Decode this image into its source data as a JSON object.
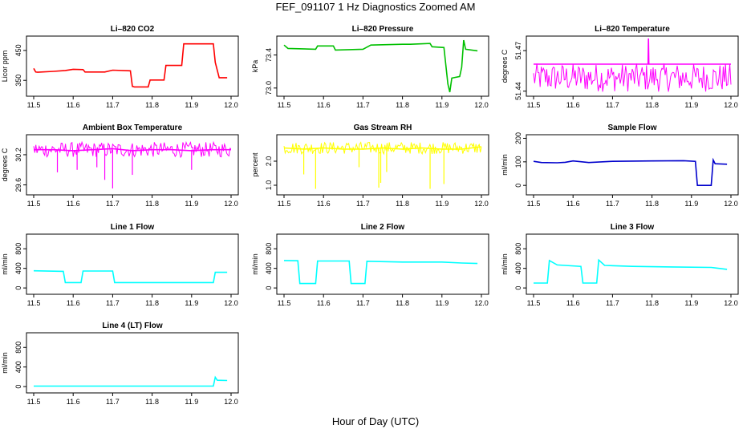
{
  "figure": {
    "title": "FEF_091107  1 Hz Diagnostics Zoomed AM",
    "xlabel": "Hour of Day (UTC)"
  },
  "chart_data": [
    {
      "type": "line",
      "title": "Li–820 CO2",
      "ylabel": "Licor ppm",
      "color": "#ff0000",
      "xlim": [
        11.5,
        12.0
      ],
      "ylim": [
        305,
        490
      ],
      "xticks": [
        "11.5",
        "11.6",
        "11.7",
        "11.8",
        "11.9",
        "12.0"
      ],
      "yticks": [
        "350",
        "450"
      ],
      "x": [
        11.5,
        11.505,
        11.51,
        11.55,
        11.58,
        11.6,
        11.625,
        11.63,
        11.68,
        11.7,
        11.745,
        11.75,
        11.755,
        11.79,
        11.795,
        11.83,
        11.835,
        11.875,
        11.88,
        11.955,
        11.96,
        11.97,
        11.99
      ],
      "y": [
        390,
        378,
        377,
        380,
        383,
        387,
        386,
        378,
        378,
        384,
        382,
        330,
        328,
        328,
        351,
        351,
        400,
        400,
        472,
        472,
        410,
        359,
        359
      ]
    },
    {
      "type": "line",
      "title": "Li–820 Pressure",
      "ylabel": "kPa",
      "color": "#00c000",
      "xlim": [
        11.5,
        12.0
      ],
      "ylim": [
        72.93,
        73.6
      ],
      "xticks": [
        "11.5",
        "11.6",
        "11.7",
        "11.8",
        "11.9",
        "12.0"
      ],
      "yticks": [
        "73.0",
        "73.4"
      ],
      "x": [
        11.5,
        11.51,
        11.58,
        11.585,
        11.625,
        11.63,
        11.7,
        11.72,
        11.8,
        11.82,
        11.87,
        11.875,
        11.905,
        11.915,
        11.92,
        11.925,
        11.945,
        11.95,
        11.955,
        11.96,
        11.99
      ],
      "y": [
        73.52,
        73.48,
        73.47,
        73.51,
        73.51,
        73.46,
        73.47,
        73.52,
        73.53,
        73.53,
        73.54,
        73.5,
        73.49,
        73.05,
        72.95,
        73.12,
        73.14,
        73.25,
        73.58,
        73.47,
        73.45
      ]
    },
    {
      "type": "line",
      "title": "Li–820 Temperature",
      "ylabel": "degrees C",
      "color": "#ff00ff",
      "xlim": [
        11.5,
        12.0
      ],
      "ylim": [
        51.438,
        51.479
      ],
      "xticks": [
        "11.5",
        "11.6",
        "11.7",
        "11.8",
        "11.9",
        "12.0"
      ],
      "yticks": [
        "51.44",
        "51.47"
      ],
      "x": [
        11.5,
        11.79,
        11.791,
        11.792,
        12.0
      ],
      "y": [
        51.46,
        51.46,
        51.479,
        51.46,
        51.46
      ],
      "band": [
        51.4395,
        51.4605
      ]
    },
    {
      "type": "line",
      "title": "Ambient Box Temperature",
      "ylabel": "degrees C",
      "color": "#ff00ff",
      "xlim": [
        11.5,
        12.0
      ],
      "ylim": [
        29.45,
        30.55
      ],
      "xticks": [
        "11.5",
        "11.6",
        "11.7",
        "11.8",
        "11.9",
        "12.0"
      ],
      "yticks": [
        "29.6",
        "30.2"
      ],
      "x": [
        11.5,
        11.55,
        11.6,
        11.65,
        11.7,
        11.75,
        11.8,
        11.85,
        11.9,
        11.95,
        12.0
      ],
      "y": [
        30.3,
        30.3,
        30.28,
        30.3,
        30.32,
        30.28,
        30.3,
        30.3,
        30.28,
        30.3,
        30.3
      ],
      "band": [
        30.15,
        30.45
      ],
      "spikes": [
        {
          "x": 11.7,
          "y": 29.53
        },
        {
          "x": 11.68,
          "y": 29.7
        },
        {
          "x": 11.56,
          "y": 29.85
        },
        {
          "x": 11.61,
          "y": 29.9
        },
        {
          "x": 11.75,
          "y": 29.8
        },
        {
          "x": 11.9,
          "y": 29.9
        },
        {
          "x": 11.66,
          "y": 29.95
        }
      ]
    },
    {
      "type": "line",
      "title": "Gas Stream RH",
      "ylabel": "percent",
      "color": "#ffff00",
      "xlim": [
        11.5,
        12.0
      ],
      "ylim": [
        0.7,
        3.0
      ],
      "xticks": [
        "11.5",
        "11.6",
        "11.7",
        "11.8",
        "11.9",
        "12.0"
      ],
      "yticks": [
        "1.0",
        "2.0"
      ],
      "x": [
        11.5,
        11.55,
        11.6,
        11.65,
        11.7,
        11.75,
        11.8,
        11.85,
        11.9,
        11.95,
        12.0
      ],
      "y": [
        2.55,
        2.5,
        2.55,
        2.5,
        2.5,
        2.55,
        2.5,
        2.55,
        2.5,
        2.5,
        2.6
      ],
      "band": [
        2.3,
        2.8
      ],
      "spikes": [
        {
          "x": 11.55,
          "y": 1.45
        },
        {
          "x": 11.58,
          "y": 0.85
        },
        {
          "x": 11.74,
          "y": 0.9
        },
        {
          "x": 11.745,
          "y": 1.1
        },
        {
          "x": 11.76,
          "y": 1.55
        },
        {
          "x": 11.87,
          "y": 0.85
        },
        {
          "x": 11.905,
          "y": 1.05
        },
        {
          "x": 11.69,
          "y": 1.75
        }
      ]
    },
    {
      "type": "line",
      "title": "Sample Flow",
      "ylabel": "ml/min",
      "color": "#0000cc",
      "xlim": [
        11.5,
        12.0
      ],
      "ylim": [
        -30,
        205
      ],
      "xticks": [
        "11.5",
        "11.6",
        "11.7",
        "11.8",
        "11.9",
        "12.0"
      ],
      "yticks": [
        "0",
        "100",
        "200"
      ],
      "x": [
        11.5,
        11.52,
        11.56,
        11.58,
        11.6,
        11.64,
        11.7,
        11.8,
        11.88,
        11.91,
        11.915,
        11.95,
        11.955,
        11.96,
        11.99
      ],
      "y": [
        102,
        97,
        96,
        98,
        104,
        97,
        102,
        104,
        105,
        102,
        0,
        0,
        108,
        92,
        90
      ]
    },
    {
      "type": "line",
      "title": "Line 1 Flow",
      "ylabel": "ml/min",
      "color": "#00ffff",
      "xlim": [
        11.5,
        12.0
      ],
      "ylim": [
        -80,
        1050
      ],
      "xticks": [
        "11.5",
        "11.6",
        "11.7",
        "11.8",
        "11.9",
        "12.0"
      ],
      "yticks": [
        "0",
        "400",
        "800"
      ],
      "x": [
        11.5,
        11.575,
        11.58,
        11.62,
        11.625,
        11.7,
        11.705,
        11.955,
        11.96,
        11.99
      ],
      "y": [
        350,
        340,
        110,
        110,
        345,
        345,
        110,
        110,
        320,
        320
      ]
    },
    {
      "type": "line",
      "title": "Line 2 Flow",
      "ylabel": "ml/min",
      "color": "#00ffff",
      "xlim": [
        11.5,
        12.0
      ],
      "ylim": [
        -80,
        1050
      ],
      "xticks": [
        "11.5",
        "11.6",
        "11.7",
        "11.8",
        "11.9",
        "12.0"
      ],
      "yticks": [
        "0",
        "400",
        "800"
      ],
      "x": [
        11.5,
        11.535,
        11.54,
        11.58,
        11.585,
        11.665,
        11.67,
        11.705,
        11.71,
        11.8,
        11.9,
        11.95,
        11.99
      ],
      "y": [
        560,
        555,
        90,
        90,
        550,
        550,
        90,
        90,
        545,
        530,
        530,
        510,
        500
      ]
    },
    {
      "type": "line",
      "title": "Line 3 Flow",
      "ylabel": "ml/min",
      "color": "#00ffff",
      "xlim": [
        11.5,
        12.0
      ],
      "ylim": [
        -80,
        1050
      ],
      "xticks": [
        "11.5",
        "11.6",
        "11.7",
        "11.8",
        "11.9",
        "12.0"
      ],
      "yticks": [
        "0",
        "400",
        "800"
      ],
      "x": [
        11.5,
        11.535,
        11.54,
        11.56,
        11.62,
        11.625,
        11.66,
        11.665,
        11.68,
        11.75,
        11.85,
        11.95,
        11.99
      ],
      "y": [
        100,
        100,
        560,
        470,
        440,
        100,
        100,
        570,
        460,
        440,
        430,
        420,
        380
      ]
    },
    {
      "type": "line",
      "title": "Line 4 (LT) Flow",
      "ylabel": "ml/min",
      "color": "#00ffff",
      "xlim": [
        11.5,
        12.0
      ],
      "ylim": [
        -80,
        1050
      ],
      "xticks": [
        "11.5",
        "11.6",
        "11.7",
        "11.8",
        "11.9",
        "12.0"
      ],
      "yticks": [
        "0",
        "400",
        "800"
      ],
      "x": [
        11.5,
        11.7,
        11.955,
        11.96,
        11.965,
        11.99
      ],
      "y": [
        10,
        10,
        10,
        190,
        130,
        125
      ]
    }
  ]
}
